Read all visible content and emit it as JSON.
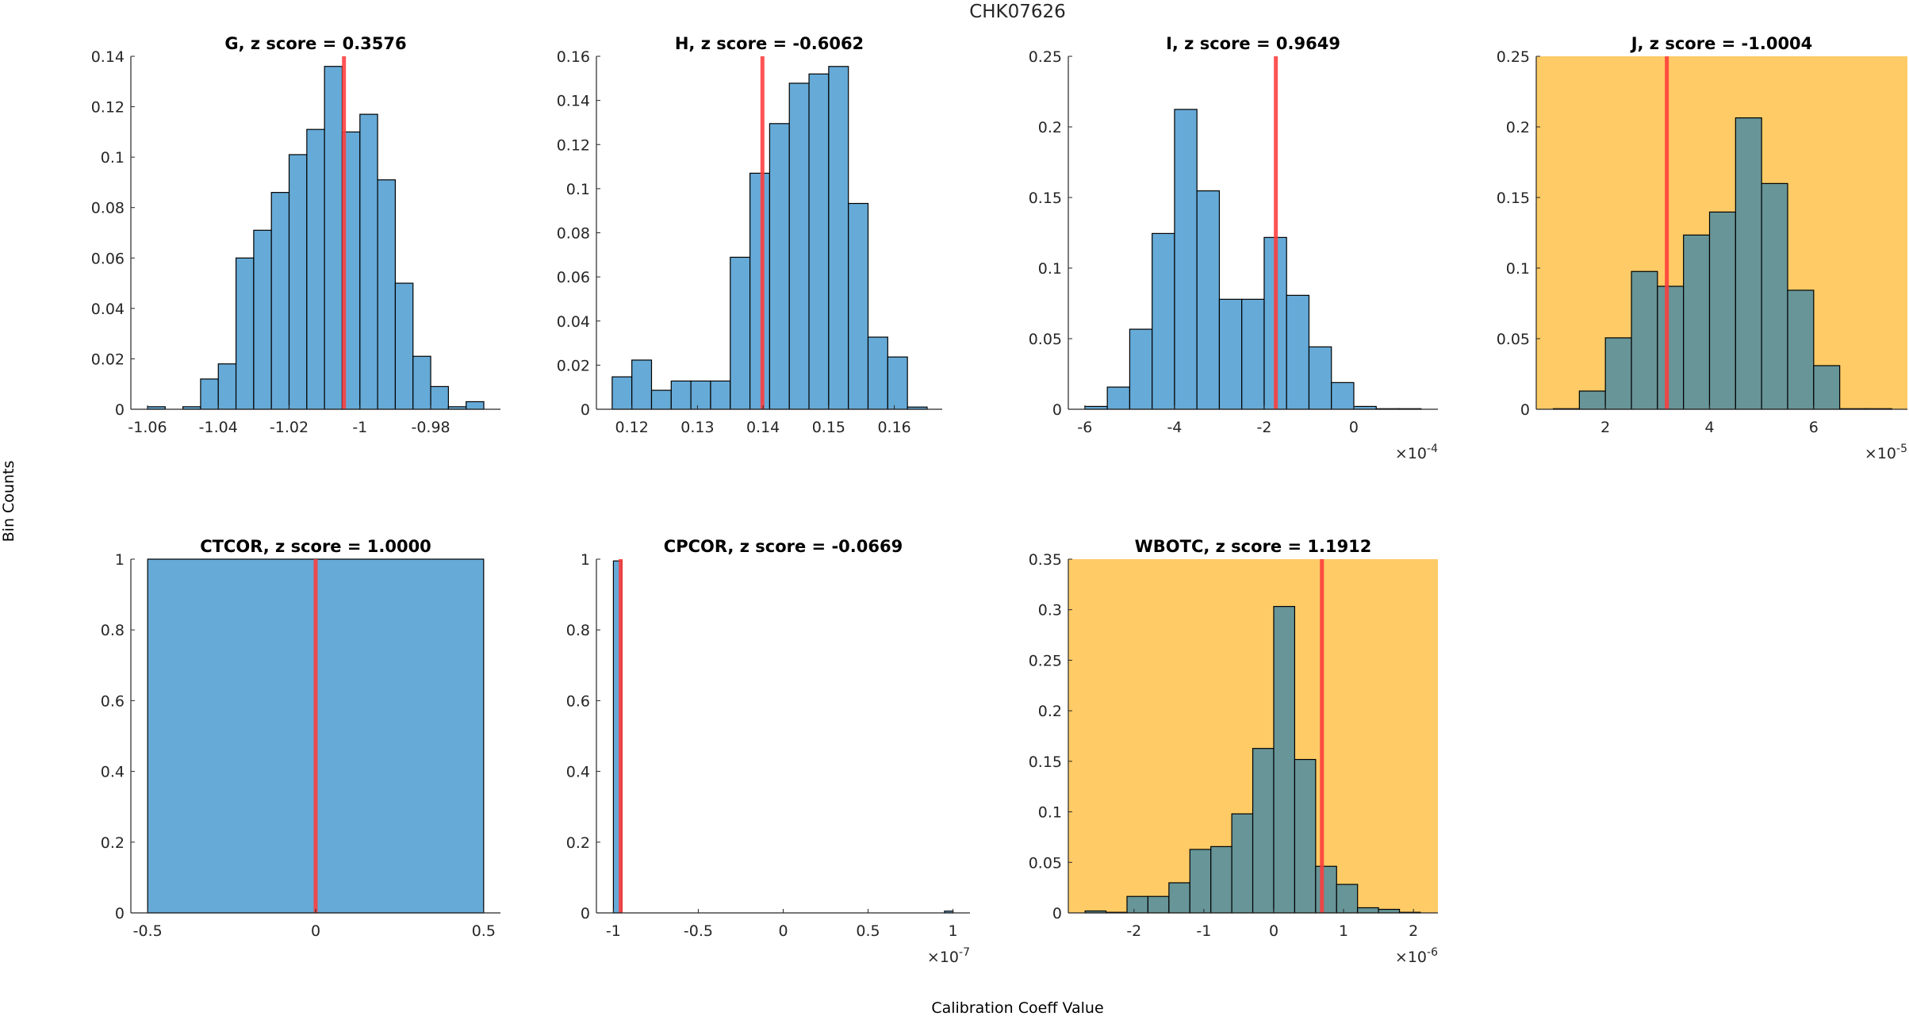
{
  "figure": {
    "title": "CHK07626",
    "xlabel": "Calibration Coeff Value",
    "ylabel": "Bin Counts",
    "colors": {
      "bar_normal": "#66AAD7",
      "bar_flagged": "#679598",
      "bar_edge": "#000000",
      "flag_background": "#FECB66",
      "marker_line": "#FF3B3B",
      "text": "#262626"
    }
  },
  "chart_data": [
    {
      "type": "bar",
      "panel": "G",
      "title": "G, z score = 0.3576",
      "z_score": 0.3576,
      "flagged": false,
      "xlabel": "",
      "ylabel": "",
      "xlim": [
        -1.0647,
        -0.9603
      ],
      "ylim": [
        0,
        0.14
      ],
      "x_exponent": "",
      "xticks": [
        -1.06,
        -1.04,
        -1.02,
        -1.0,
        -0.98
      ],
      "xtick_labels": [
        "-1.06",
        "-1.04",
        "-1.02",
        "-1",
        "-0.98"
      ],
      "yticks": [
        0,
        0.02,
        0.04,
        0.06,
        0.08,
        0.1,
        0.12,
        0.14
      ],
      "ytick_labels": [
        "0",
        "0.02",
        "0.04",
        "0.06",
        "0.08",
        "0.1",
        "0.12",
        "0.14"
      ],
      "bin_start": -1.06,
      "bin_width": 0.005,
      "values": [
        0.001,
        0.0,
        0.001,
        0.012,
        0.018,
        0.06,
        0.071,
        0.086,
        0.101,
        0.111,
        0.136,
        0.11,
        0.117,
        0.091,
        0.05,
        0.021,
        0.009,
        0.001,
        0.003
      ],
      "marker_x": -1.0045
    },
    {
      "type": "bar",
      "panel": "H",
      "title": "H, z score = -0.6062",
      "z_score": -0.6062,
      "flagged": false,
      "xlabel": "",
      "ylabel": "",
      "xlim": [
        0.1146,
        0.1673
      ],
      "ylim": [
        0,
        0.16
      ],
      "x_exponent": "",
      "xticks": [
        0.12,
        0.13,
        0.14,
        0.15,
        0.16
      ],
      "xtick_labels": [
        "0.12",
        "0.13",
        "0.14",
        "0.15",
        "0.16"
      ],
      "yticks": [
        0,
        0.02,
        0.04,
        0.06,
        0.08,
        0.1,
        0.12,
        0.14,
        0.16
      ],
      "ytick_labels": [
        "0",
        "0.02",
        "0.04",
        "0.06",
        "0.08",
        "0.1",
        "0.12",
        "0.14",
        "0.16"
      ],
      "bin_start": 0.117,
      "bin_width": 0.003,
      "values": [
        0.0147,
        0.0223,
        0.0086,
        0.0128,
        0.0128,
        0.0128,
        0.0689,
        0.107,
        0.1295,
        0.1478,
        0.152,
        0.1554,
        0.0933,
        0.0327,
        0.0237,
        0.001
      ],
      "marker_x": 0.1399
    },
    {
      "type": "bar",
      "panel": "I",
      "title": "I, z score = 0.9649",
      "z_score": 0.9649,
      "flagged": false,
      "xlabel": "",
      "ylabel": "",
      "xlim": [
        -6.37,
        1.876
      ],
      "ylim": [
        0,
        0.25
      ],
      "x_exponent": "-4",
      "xticks": [
        -6,
        -4,
        -2,
        0
      ],
      "xtick_labels": [
        "-6",
        "-4",
        "-2",
        "0"
      ],
      "yticks": [
        0,
        0.05,
        0.1,
        0.15,
        0.2,
        0.25
      ],
      "ytick_labels": [
        "0",
        "0.05",
        "0.1",
        "0.15",
        "0.2",
        "0.25"
      ],
      "bin_start": -6.0,
      "bin_width": 0.5,
      "values": [
        0.002,
        0.0157,
        0.0567,
        0.1245,
        0.2124,
        0.1547,
        0.0779,
        0.0779,
        0.1217,
        0.0807,
        0.0442,
        0.0189,
        0.002,
        0.0004,
        0.0004
      ],
      "marker_x": -1.74
    },
    {
      "type": "bar",
      "panel": "J",
      "title": "J, z score = -1.0004",
      "z_score": -1.0004,
      "flagged": true,
      "xlabel": "",
      "ylabel": "",
      "xlim": [
        0.672,
        7.8
      ],
      "ylim": [
        0,
        0.25
      ],
      "x_exponent": "-5",
      "xticks": [
        2,
        4,
        6
      ],
      "xtick_labels": [
        "2",
        "4",
        "6"
      ],
      "yticks": [
        0,
        0.05,
        0.1,
        0.15,
        0.2,
        0.25
      ],
      "ytick_labels": [
        "0",
        "0.05",
        "0.1",
        "0.15",
        "0.2",
        "0.25"
      ],
      "bin_start": 1.0,
      "bin_width": 0.5,
      "values": [
        0.0004,
        0.0129,
        0.0506,
        0.0976,
        0.0871,
        0.1234,
        0.1397,
        0.2064,
        0.1599,
        0.0843,
        0.0309,
        0.0004,
        0.0004
      ],
      "marker_x": 3.18
    },
    {
      "type": "bar",
      "panel": "CTCOR",
      "title": "CTCOR, z score = 1.0000",
      "z_score": 1.0,
      "flagged": false,
      "xlabel": "",
      "ylabel": "",
      "xlim": [
        -0.55,
        0.55
      ],
      "ylim": [
        0,
        1
      ],
      "x_exponent": "",
      "xticks": [
        -0.5,
        0,
        0.5
      ],
      "xtick_labels": [
        "-0.5",
        "0",
        "0.5"
      ],
      "yticks": [
        0,
        0.2,
        0.4,
        0.6,
        0.8,
        1
      ],
      "ytick_labels": [
        "0",
        "0.2",
        "0.4",
        "0.6",
        "0.8",
        "1"
      ],
      "bin_start": -0.5,
      "bin_width": 1.0,
      "values": [
        1.0
      ],
      "marker_x": 0.0
    },
    {
      "type": "bar",
      "panel": "CPCOR",
      "title": "CPCOR, z score = -0.0669",
      "z_score": -0.0669,
      "flagged": false,
      "xlabel": "",
      "ylabel": "",
      "xlim": [
        -1.1,
        1.1
      ],
      "ylim": [
        0,
        1
      ],
      "x_exponent": "-7",
      "xticks": [
        -1,
        -0.5,
        0,
        0.5,
        1
      ],
      "xtick_labels": [
        "-1",
        "-0.5",
        "0",
        "0.5",
        "1"
      ],
      "yticks": [
        0,
        0.2,
        0.4,
        0.6,
        0.8,
        1
      ],
      "ytick_labels": [
        "0",
        "0.2",
        "0.4",
        "0.6",
        "0.8",
        "1"
      ],
      "bin_start": -1.0,
      "bin_width": 0.05,
      "values": [
        0.995,
        0,
        0,
        0,
        0,
        0,
        0,
        0,
        0,
        0,
        0,
        0,
        0,
        0,
        0,
        0,
        0,
        0,
        0,
        0,
        0,
        0,
        0,
        0,
        0,
        0,
        0,
        0,
        0,
        0,
        0,
        0,
        0,
        0,
        0,
        0,
        0,
        0,
        0,
        0.005
      ],
      "marker_x": -0.957
    },
    {
      "type": "bar",
      "panel": "WBOTC",
      "title": "WBOTC, z score = 1.1912",
      "z_score": 1.1912,
      "flagged": true,
      "xlabel": "",
      "ylabel": "",
      "xlim": [
        -2.94,
        2.35
      ],
      "ylim": [
        0,
        0.35
      ],
      "x_exponent": "-6",
      "xticks": [
        -2,
        -1,
        0,
        1,
        2
      ],
      "xtick_labels": [
        "-2",
        "-1",
        "0",
        "1",
        "2"
      ],
      "yticks": [
        0,
        0.05,
        0.1,
        0.15,
        0.2,
        0.25,
        0.3,
        0.35
      ],
      "ytick_labels": [
        "0",
        "0.05",
        "0.1",
        "0.15",
        "0.2",
        "0.25",
        "0.3",
        "0.35"
      ],
      "bin_start": -2.7,
      "bin_width": 0.3,
      "values": [
        0.0019,
        0.0006,
        0.0163,
        0.0163,
        0.0298,
        0.0628,
        0.0656,
        0.098,
        0.1627,
        0.3032,
        0.1518,
        0.0461,
        0.0282,
        0.0051,
        0.0035,
        0.0006
      ],
      "marker_x": 0.69
    }
  ]
}
